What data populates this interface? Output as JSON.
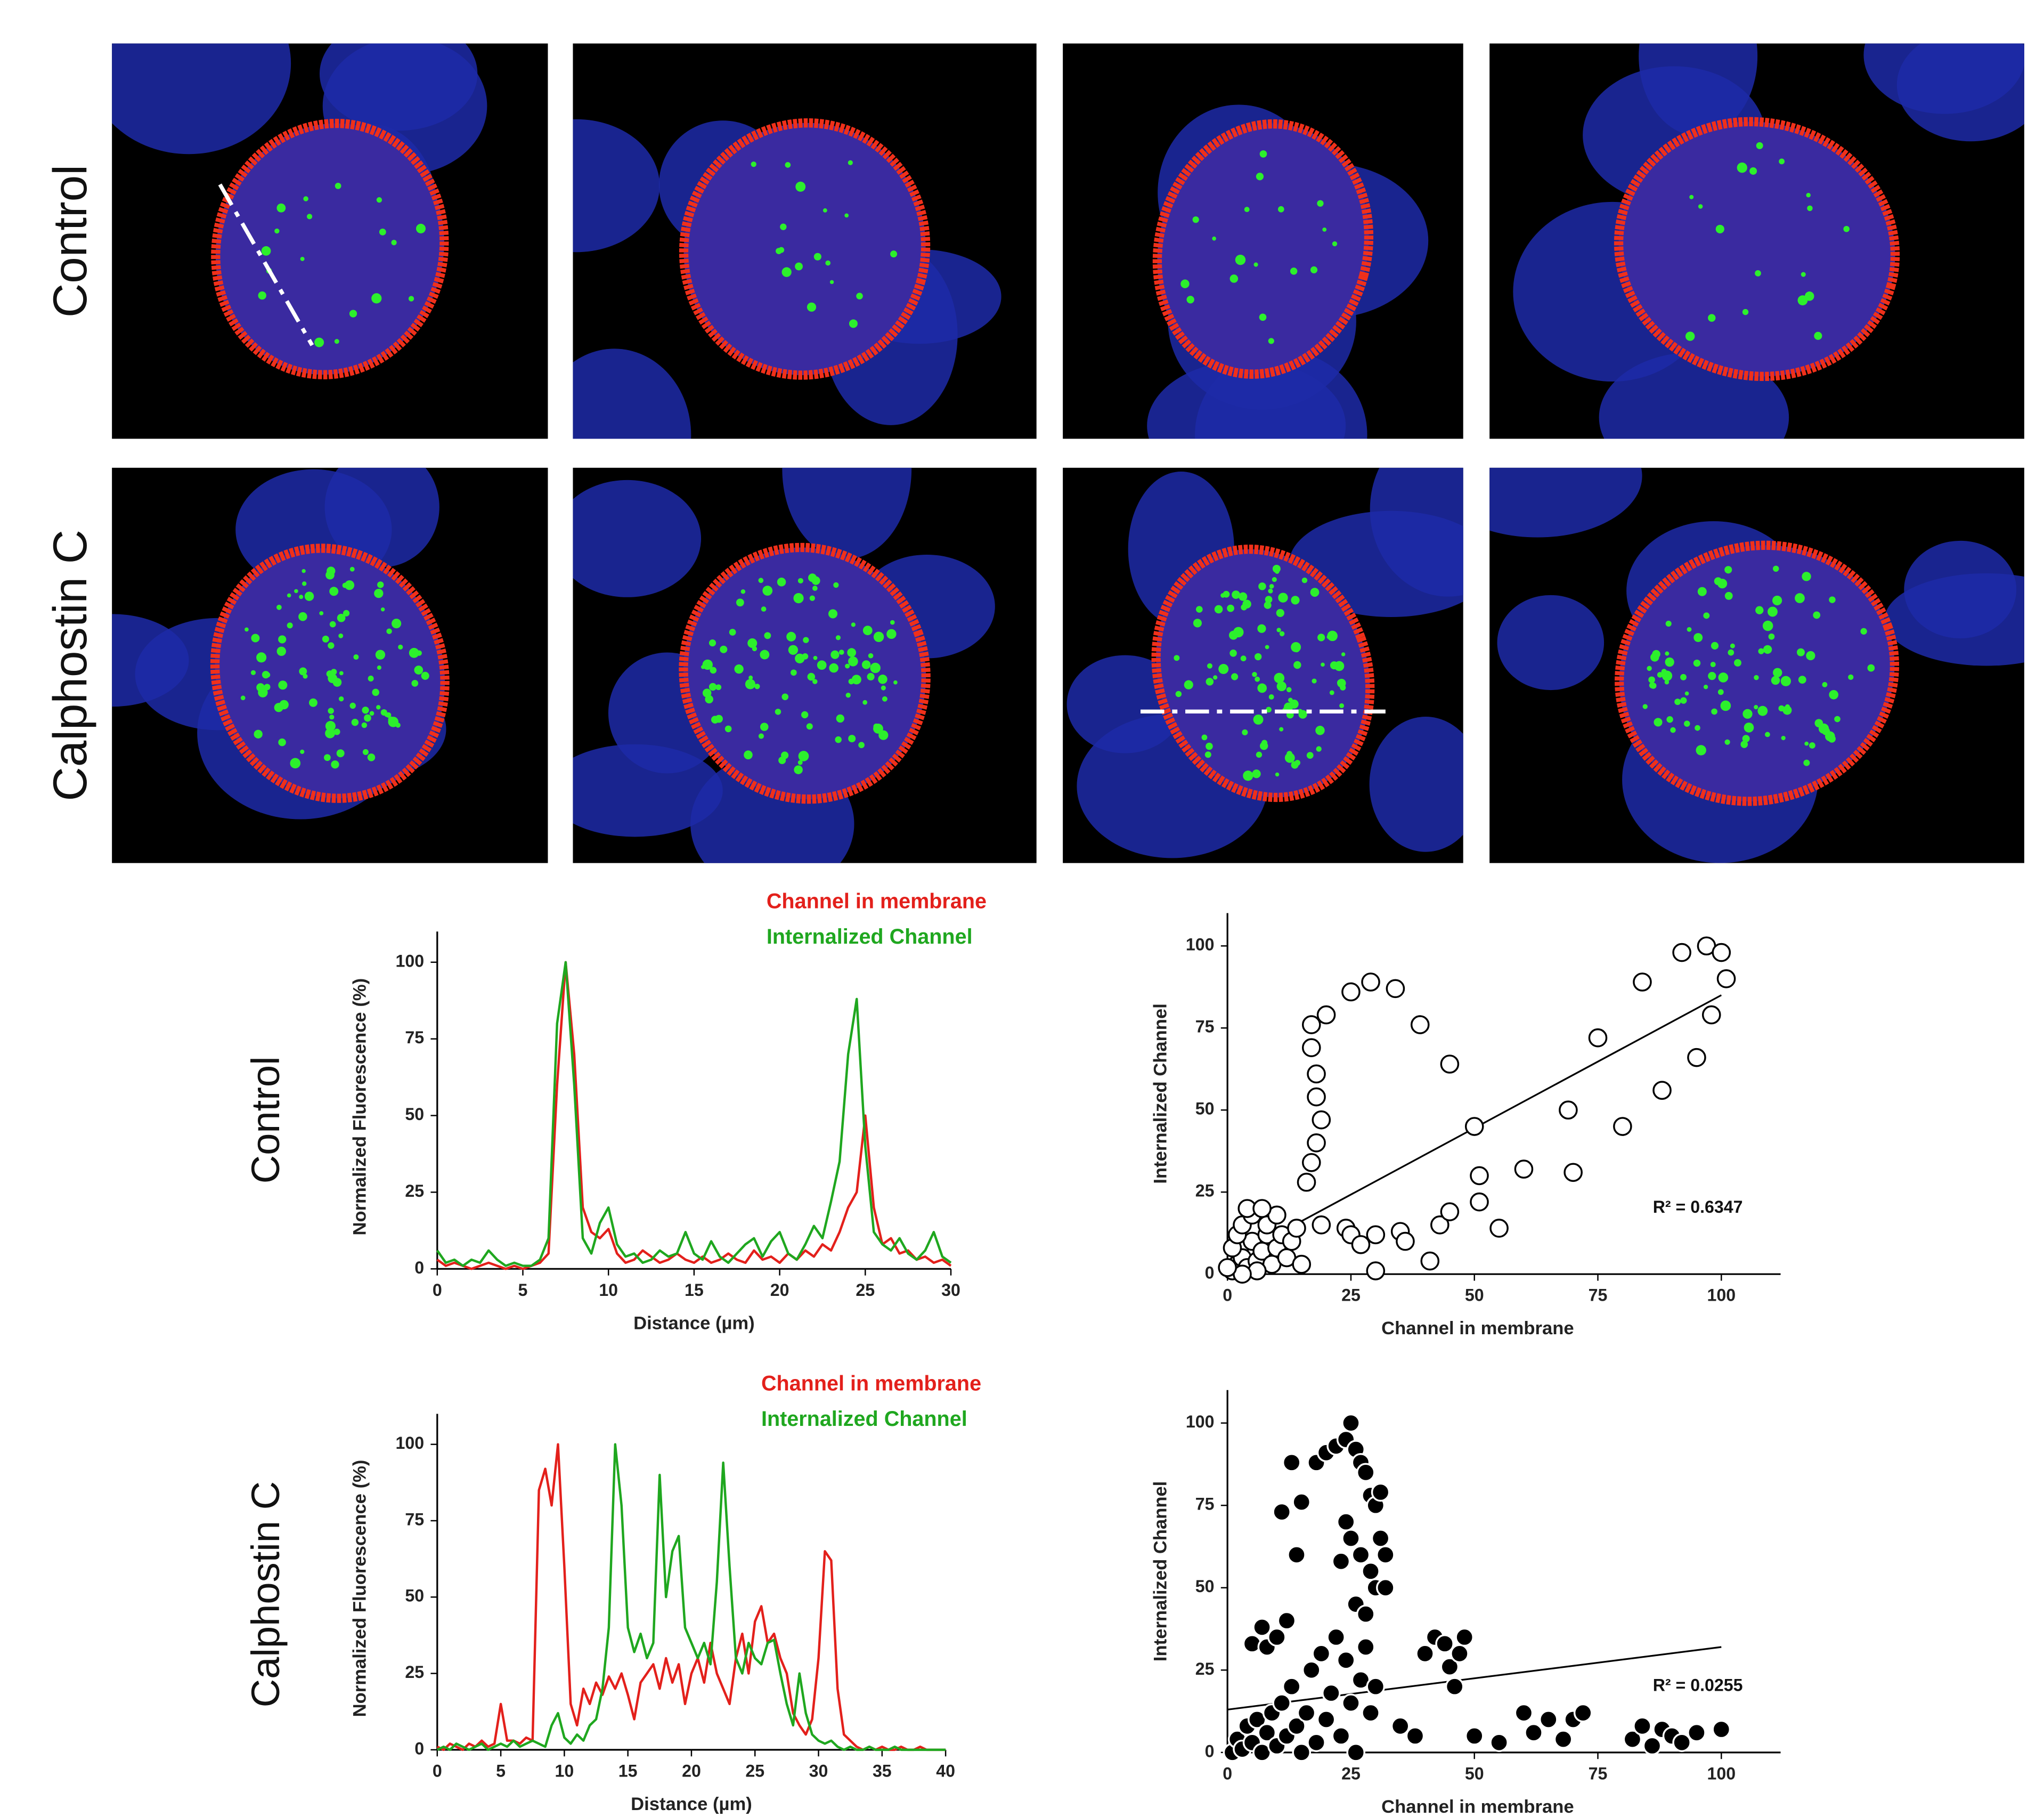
{
  "row_labels": [
    "Control",
    "Calphostin C"
  ],
  "chart_data": [
    {
      "type": "line",
      "xlabel": "Distance (µm)",
      "ylabel": "Normalized Fluorescence (%)",
      "legend": "top-right",
      "xlim": [
        0,
        30
      ],
      "xticks": [
        0,
        5,
        10,
        15,
        20,
        25,
        30
      ],
      "ylim": [
        0,
        110
      ],
      "yticks": [
        0,
        25,
        50,
        75,
        100
      ],
      "x": [
        0,
        0.5,
        1,
        1.5,
        2,
        2.5,
        3,
        3.5,
        4,
        4.5,
        5,
        5.5,
        6,
        6.5,
        7,
        7.5,
        8,
        8.5,
        9,
        9.5,
        10,
        10.5,
        11,
        11.5,
        12,
        12.5,
        13,
        13.5,
        14,
        14.5,
        15,
        15.5,
        16,
        16.5,
        17,
        17.5,
        18,
        18.5,
        19,
        19.5,
        20,
        20.5,
        21,
        21.5,
        22,
        22.5,
        23,
        23.5,
        24,
        24.5,
        25,
        25.5,
        26,
        26.5,
        27,
        27.5,
        28,
        28.5,
        29,
        29.5,
        30
      ],
      "series": [
        {
          "name": "Channel in membrane",
          "color": "#e3201b",
          "values": [
            3,
            1,
            2,
            1,
            0,
            1,
            2,
            1,
            0,
            1,
            0,
            1,
            2,
            5,
            60,
            100,
            70,
            20,
            12,
            10,
            13,
            5,
            2,
            3,
            6,
            4,
            2,
            3,
            5,
            3,
            2,
            4,
            2,
            3,
            5,
            3,
            2,
            6,
            3,
            4,
            2,
            5,
            3,
            6,
            4,
            8,
            6,
            12,
            20,
            25,
            50,
            20,
            8,
            10,
            5,
            6,
            3,
            4,
            2,
            3,
            1
          ]
        },
        {
          "name": "Internalized Channel",
          "color": "#1fa71f",
          "values": [
            6,
            2,
            3,
            1,
            3,
            2,
            6,
            3,
            1,
            2,
            1,
            1,
            3,
            10,
            80,
            100,
            60,
            10,
            5,
            15,
            20,
            8,
            4,
            5,
            2,
            3,
            6,
            4,
            5,
            12,
            5,
            3,
            9,
            4,
            2,
            5,
            8,
            10,
            4,
            9,
            12,
            5,
            3,
            8,
            14,
            10,
            22,
            35,
            70,
            88,
            40,
            12,
            8,
            6,
            10,
            5,
            3,
            6,
            12,
            4,
            2
          ]
        }
      ]
    },
    {
      "type": "line",
      "xlabel": "Distance (µm)",
      "ylabel": "Normalized Fluorescence (%)",
      "legend": "top-right",
      "xlim": [
        0,
        40
      ],
      "xticks": [
        0,
        5,
        10,
        15,
        20,
        25,
        30,
        35,
        40
      ],
      "ylim": [
        0,
        110
      ],
      "yticks": [
        0,
        25,
        50,
        75,
        100
      ],
      "x": [
        0,
        0.5,
        1,
        1.5,
        2,
        2.5,
        3,
        3.5,
        4,
        4.5,
        5,
        5.5,
        6,
        6.5,
        7,
        7.5,
        8,
        8.5,
        9,
        9.5,
        10,
        10.5,
        11,
        11.5,
        12,
        12.5,
        13,
        13.5,
        14,
        14.5,
        15,
        15.5,
        16,
        16.5,
        17,
        17.5,
        18,
        18.5,
        19,
        19.5,
        20,
        20.5,
        21,
        21.5,
        22,
        22.5,
        23,
        23.5,
        24,
        24.5,
        25,
        25.5,
        26,
        26.5,
        27,
        27.5,
        28,
        28.5,
        29,
        29.5,
        30,
        30.5,
        31,
        31.5,
        32,
        32.5,
        33,
        33.5,
        34,
        34.5,
        35,
        35.5,
        36,
        36.5,
        37,
        37.5,
        38,
        38.5,
        39,
        39.5,
        40
      ],
      "series": [
        {
          "name": "Channel in membrane",
          "color": "#e3201b",
          "values": [
            1,
            0,
            2,
            1,
            0,
            2,
            1,
            3,
            1,
            2,
            15,
            3,
            3,
            2,
            4,
            3,
            85,
            92,
            80,
            100,
            60,
            15,
            8,
            20,
            15,
            22,
            18,
            24,
            20,
            25,
            18,
            10,
            22,
            25,
            28,
            20,
            30,
            22,
            28,
            15,
            25,
            30,
            22,
            35,
            25,
            20,
            15,
            30,
            38,
            25,
            42,
            47,
            35,
            38,
            30,
            25,
            12,
            8,
            5,
            10,
            30,
            65,
            62,
            20,
            5,
            3,
            1,
            0,
            1,
            0,
            1,
            0,
            0,
            1,
            0,
            0,
            1,
            0,
            0,
            0,
            0
          ]
        },
        {
          "name": "Internalized Channel",
          "color": "#1fa71f",
          "values": [
            0,
            1,
            0,
            2,
            1,
            0,
            1,
            2,
            0,
            1,
            2,
            1,
            3,
            1,
            2,
            3,
            2,
            1,
            8,
            12,
            4,
            2,
            5,
            3,
            8,
            10,
            20,
            40,
            100,
            80,
            40,
            32,
            38,
            30,
            35,
            90,
            50,
            65,
            70,
            40,
            35,
            30,
            35,
            28,
            55,
            94,
            60,
            30,
            25,
            35,
            30,
            28,
            35,
            36,
            25,
            15,
            8,
            25,
            12,
            5,
            3,
            2,
            3,
            1,
            0,
            1,
            0,
            0,
            1,
            0,
            0,
            0,
            1,
            0,
            0,
            0,
            0,
            0,
            0,
            0,
            0
          ]
        }
      ]
    },
    {
      "type": "scatter",
      "xlabel": "Channel in membrane",
      "xlabel_color": "#e3201b",
      "ylabel": "Internalized Channel",
      "ylabel_color": "#1fa71f",
      "xlim": [
        0,
        112
      ],
      "xticks": [
        0,
        25,
        50,
        75,
        100
      ],
      "ylim": [
        0,
        110
      ],
      "yticks": [
        0,
        25,
        50,
        75,
        100
      ],
      "marker_fill": "#ffffff",
      "marker_stroke": "#000000",
      "annotation": "R² = 0.6347",
      "trendline": {
        "x": [
          0,
          100
        ],
        "values": [
          4,
          85
        ]
      },
      "x": [
        1,
        2,
        3,
        1,
        4,
        5,
        6,
        2,
        3,
        7,
        8,
        5,
        4,
        9,
        10,
        11,
        6,
        12,
        3,
        0,
        13,
        14,
        15,
        8,
        10,
        7,
        16,
        17,
        18,
        19,
        18,
        18,
        17,
        17,
        20,
        25,
        29,
        34,
        39,
        45,
        19,
        24,
        25,
        27,
        30,
        30,
        35,
        36,
        41,
        43,
        45,
        50,
        51,
        51,
        55,
        60,
        69,
        70,
        75,
        80,
        84,
        88,
        92,
        95,
        97,
        98,
        100,
        101
      ],
      "values": [
        1,
        3,
        5,
        8,
        2,
        10,
        4,
        12,
        15,
        7,
        12,
        18,
        20,
        3,
        8,
        12,
        1,
        5,
        0,
        2,
        10,
        14,
        3,
        15,
        18,
        20,
        28,
        34,
        40,
        47,
        54,
        61,
        69,
        76,
        79,
        86,
        89,
        87,
        76,
        64,
        15,
        14,
        12,
        9,
        12,
        1,
        13,
        10,
        4,
        15,
        19,
        45,
        30,
        22,
        14,
        32,
        50,
        31,
        72,
        45,
        89,
        56,
        98,
        66,
        100,
        79,
        98,
        90
      ]
    },
    {
      "type": "scatter",
      "xlabel": "Channel in membrane",
      "xlabel_color": "#e3201b",
      "ylabel": "Internalized Channel",
      "ylabel_color": "#1fa71f",
      "xlim": [
        0,
        112
      ],
      "xticks": [
        0,
        25,
        50,
        75,
        100
      ],
      "ylim": [
        0,
        110
      ],
      "yticks": [
        0,
        25,
        50,
        75,
        100
      ],
      "marker_fill": "#000000",
      "marker_stroke": "#ffffff",
      "annotation": "R² = 0.0255",
      "trendline": {
        "x": [
          0,
          100
        ],
        "values": [
          13,
          32
        ]
      },
      "x": [
        1,
        2,
        3,
        4,
        5,
        6,
        7,
        8,
        9,
        10,
        11,
        12,
        13,
        14,
        15,
        16,
        17,
        18,
        19,
        20,
        21,
        22,
        23,
        24,
        25,
        26,
        27,
        28,
        29,
        30,
        5,
        7,
        8,
        10,
        12,
        14,
        11,
        15,
        13,
        18,
        20,
        22,
        24,
        25,
        26,
        27,
        28,
        29,
        30,
        31,
        24,
        25,
        27,
        29,
        30,
        23,
        26,
        28,
        31,
        32,
        32,
        35,
        38,
        40,
        42,
        44,
        45,
        46,
        47,
        48,
        50,
        55,
        60,
        62,
        65,
        68,
        70,
        72,
        82,
        84,
        86,
        88,
        90,
        92,
        95,
        100
      ],
      "values": [
        0,
        4,
        1,
        8,
        3,
        10,
        0,
        6,
        12,
        2,
        15,
        5,
        20,
        8,
        0,
        12,
        25,
        3,
        30,
        10,
        18,
        35,
        5,
        28,
        15,
        0,
        22,
        32,
        12,
        20,
        33,
        38,
        32,
        35,
        40,
        60,
        73,
        76,
        88,
        88,
        91,
        93,
        95,
        100,
        92,
        88,
        85,
        78,
        75,
        79,
        70,
        65,
        60,
        55,
        50,
        58,
        45,
        42,
        65,
        60,
        50,
        8,
        5,
        30,
        35,
        33,
        26,
        20,
        30,
        35,
        5,
        3,
        12,
        6,
        10,
        4,
        10,
        12,
        4,
        8,
        2,
        7,
        5,
        3,
        6,
        7
      ]
    }
  ]
}
